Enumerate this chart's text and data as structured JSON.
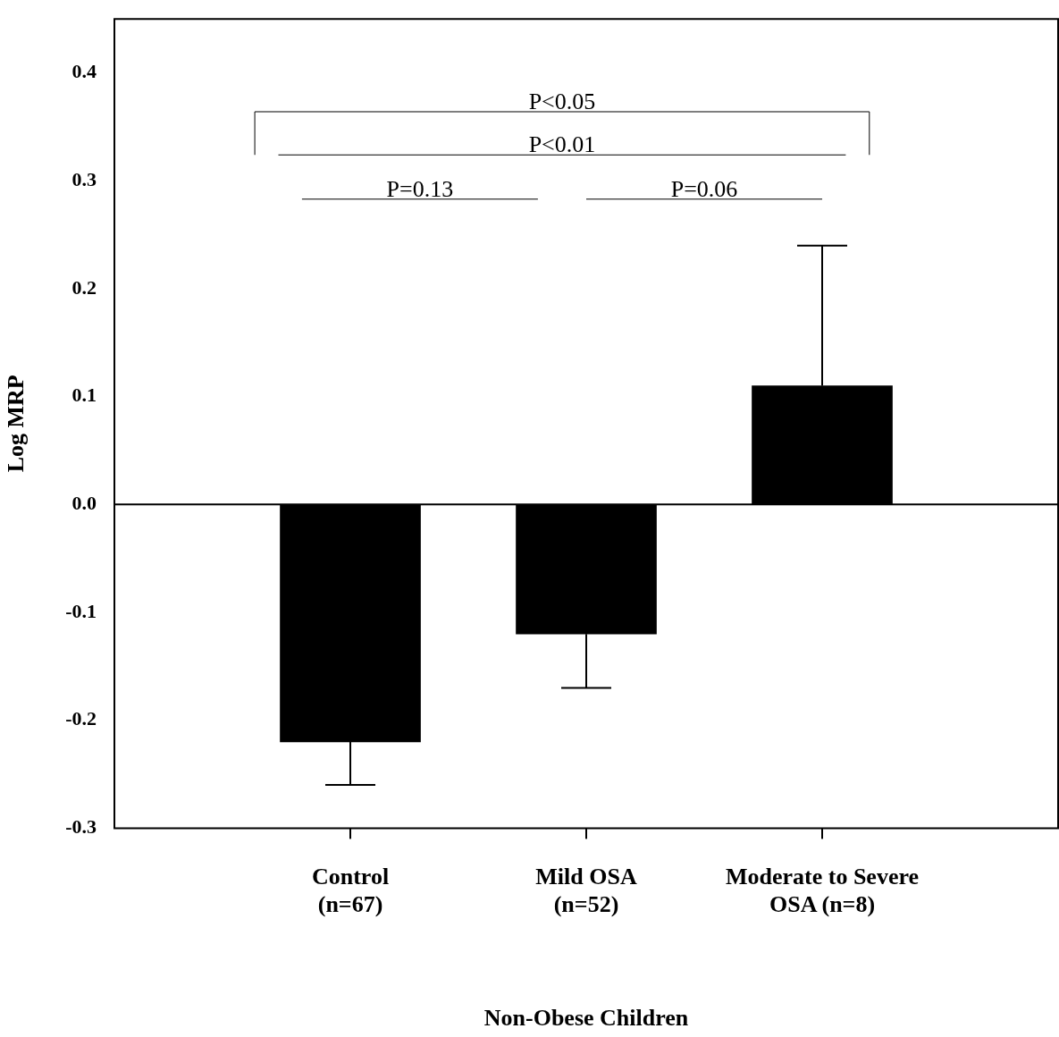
{
  "chart_data": {
    "type": "bar",
    "xlabel": "Non-Obese Children",
    "ylabel": "Log MRP",
    "categories": [
      "Control\n(n=67)",
      "Mild OSA\n(n=52)",
      "Moderate to Severe\nOSA (n=8)"
    ],
    "values": [
      -0.22,
      -0.12,
      0.11
    ],
    "errors": [
      [
        -0.26,
        -0.22
      ],
      [
        -0.17,
        -0.12
      ],
      [
        0.11,
        0.24
      ]
    ],
    "color": "#000000",
    "ylim": [
      -0.3,
      0.45
    ],
    "yticks": [
      {
        "value": -0.3,
        "label": "-0.3"
      },
      {
        "value": -0.2,
        "label": "-0.2"
      },
      {
        "value": -0.1,
        "label": "-0.1"
      },
      {
        "value": 0,
        "label": "0.0"
      },
      {
        "value": 0.1,
        "label": "0.1"
      },
      {
        "value": 0.2,
        "label": "0.2"
      },
      {
        "value": 0.3,
        "label": "0.3"
      },
      {
        "value": 0.4,
        "label": "0.4"
      }
    ],
    "ref_lines": [
      {
        "axis": "y",
        "value": 0,
        "color": "#000000"
      }
    ],
    "annotations": [
      "P<0.05",
      "P<0.01",
      "P=0.13",
      "P=0.06"
    ],
    "grid": false,
    "legend": false
  }
}
